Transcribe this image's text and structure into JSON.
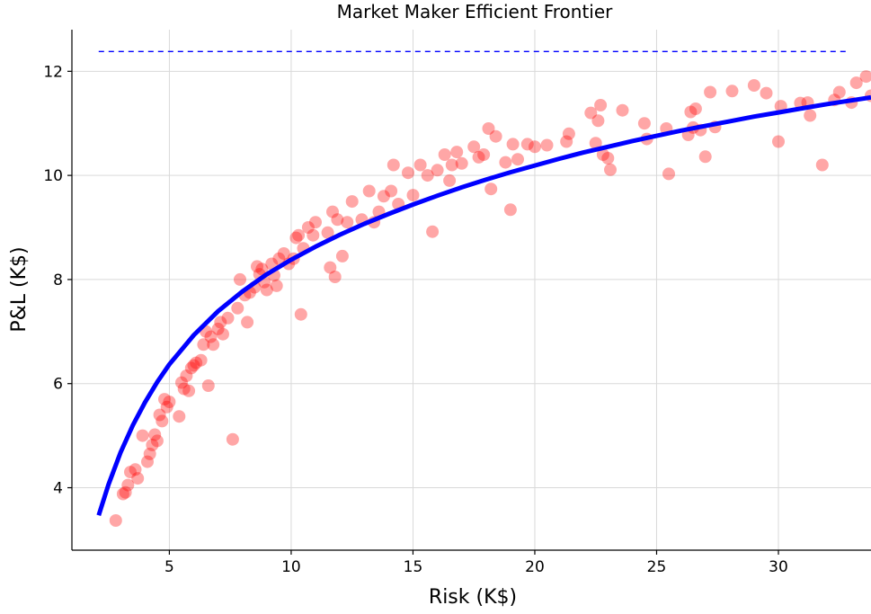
{
  "chart_data": {
    "type": "scatter",
    "title": "Market Maker Efficient Frontier",
    "xlabel": "Risk (K$)",
    "ylabel": "P&L (K$)",
    "xlim": [
      1.0,
      33.8
    ],
    "ylim": [
      2.8,
      12.8
    ],
    "xticks": [
      5,
      10,
      15,
      20,
      25,
      30
    ],
    "yticks": [
      4,
      6,
      8,
      10,
      12
    ],
    "grid": true,
    "legend": "none",
    "colors": {
      "scatter": "#ff0000",
      "frontier": "#0000ff",
      "reference": "#0000ff",
      "grid": "#d9d9d9"
    },
    "series": [
      {
        "type": "line",
        "style": "solid",
        "x": [
          2.1,
          2.5,
          3.0,
          3.5,
          4.0,
          4.5,
          5.0,
          6.0,
          7.0,
          8.0,
          9.0,
          10.0,
          11.0,
          12.0,
          13.0,
          14.0,
          15.0,
          16.0,
          17.0,
          18.0,
          19.0,
          20.0,
          21.0,
          22.0,
          23.0,
          24.0,
          25.0,
          26.0,
          27.0,
          28.0,
          29.0,
          30.0,
          31.0,
          32.0,
          33.0,
          33.8
        ],
        "y": [
          3.47,
          4.06,
          4.68,
          5.2,
          5.64,
          6.03,
          6.37,
          6.93,
          7.39,
          7.77,
          8.1,
          8.38,
          8.63,
          8.86,
          9.07,
          9.26,
          9.44,
          9.61,
          9.77,
          9.92,
          10.06,
          10.19,
          10.32,
          10.44,
          10.55,
          10.66,
          10.76,
          10.86,
          10.95,
          11.04,
          11.13,
          11.21,
          11.29,
          11.37,
          11.44,
          11.5
        ]
      },
      {
        "type": "line",
        "style": "dashed",
        "x": [
          2.1,
          32.8
        ],
        "y": [
          12.38,
          12.38
        ]
      },
      {
        "type": "scatter",
        "points": [
          [
            2.8,
            3.37
          ],
          [
            3.1,
            3.88
          ],
          [
            3.2,
            3.91
          ],
          [
            3.3,
            4.05
          ],
          [
            3.4,
            4.3
          ],
          [
            3.6,
            4.35
          ],
          [
            3.7,
            4.18
          ],
          [
            3.9,
            5.0
          ],
          [
            4.1,
            4.5
          ],
          [
            4.2,
            4.65
          ],
          [
            4.3,
            4.82
          ],
          [
            4.4,
            5.02
          ],
          [
            4.5,
            4.9
          ],
          [
            4.6,
            5.4
          ],
          [
            4.7,
            5.28
          ],
          [
            4.8,
            5.7
          ],
          [
            4.9,
            5.55
          ],
          [
            5.0,
            5.65
          ],
          [
            5.4,
            5.37
          ],
          [
            5.5,
            6.02
          ],
          [
            5.6,
            5.9
          ],
          [
            5.7,
            6.15
          ],
          [
            5.8,
            5.86
          ],
          [
            5.9,
            6.3
          ],
          [
            6.0,
            6.35
          ],
          [
            6.1,
            6.4
          ],
          [
            6.3,
            6.45
          ],
          [
            6.4,
            6.75
          ],
          [
            6.5,
            7.0
          ],
          [
            6.6,
            5.96
          ],
          [
            6.7,
            6.9
          ],
          [
            6.8,
            6.75
          ],
          [
            7.0,
            7.05
          ],
          [
            7.1,
            7.18
          ],
          [
            7.2,
            6.95
          ],
          [
            7.4,
            7.26
          ],
          [
            7.6,
            4.93
          ],
          [
            7.8,
            7.45
          ],
          [
            7.9,
            8.0
          ],
          [
            8.1,
            7.7
          ],
          [
            8.2,
            7.18
          ],
          [
            8.3,
            7.75
          ],
          [
            8.5,
            7.85
          ],
          [
            8.6,
            8.25
          ],
          [
            8.7,
            8.1
          ],
          [
            8.8,
            8.2
          ],
          [
            8.9,
            7.95
          ],
          [
            9.0,
            7.8
          ],
          [
            9.2,
            8.3
          ],
          [
            9.3,
            8.08
          ],
          [
            9.4,
            7.88
          ],
          [
            9.5,
            8.4
          ],
          [
            9.7,
            8.5
          ],
          [
            9.9,
            8.3
          ],
          [
            10.1,
            8.4
          ],
          [
            10.2,
            8.8
          ],
          [
            10.3,
            8.85
          ],
          [
            10.4,
            7.33
          ],
          [
            10.5,
            8.6
          ],
          [
            10.7,
            9.0
          ],
          [
            10.9,
            8.85
          ],
          [
            11.0,
            9.1
          ],
          [
            11.5,
            8.9
          ],
          [
            11.6,
            8.23
          ],
          [
            11.7,
            9.3
          ],
          [
            11.8,
            8.05
          ],
          [
            11.9,
            9.15
          ],
          [
            12.1,
            8.45
          ],
          [
            12.3,
            9.1
          ],
          [
            12.5,
            9.5
          ],
          [
            12.9,
            9.15
          ],
          [
            13.2,
            9.7
          ],
          [
            13.4,
            9.1
          ],
          [
            13.6,
            9.3
          ],
          [
            13.8,
            9.6
          ],
          [
            14.1,
            9.7
          ],
          [
            14.2,
            10.2
          ],
          [
            14.4,
            9.45
          ],
          [
            14.8,
            10.05
          ],
          [
            15.0,
            9.62
          ],
          [
            15.3,
            10.2
          ],
          [
            15.6,
            10.0
          ],
          [
            15.8,
            8.92
          ],
          [
            16.0,
            10.1
          ],
          [
            16.3,
            10.4
          ],
          [
            16.5,
            9.9
          ],
          [
            16.6,
            10.2
          ],
          [
            16.8,
            10.45
          ],
          [
            17.0,
            10.23
          ],
          [
            17.5,
            10.55
          ],
          [
            17.7,
            10.35
          ],
          [
            17.9,
            10.4
          ],
          [
            18.1,
            10.9
          ],
          [
            18.2,
            9.74
          ],
          [
            18.4,
            10.75
          ],
          [
            18.8,
            10.25
          ],
          [
            19.0,
            9.34
          ],
          [
            19.1,
            10.6
          ],
          [
            19.3,
            10.31
          ],
          [
            19.7,
            10.6
          ],
          [
            20.0,
            10.55
          ],
          [
            20.5,
            10.58
          ],
          [
            21.3,
            10.65
          ],
          [
            21.4,
            10.8
          ],
          [
            22.3,
            11.2
          ],
          [
            22.5,
            10.62
          ],
          [
            22.6,
            11.05
          ],
          [
            22.7,
            11.35
          ],
          [
            22.8,
            10.4
          ],
          [
            23.0,
            10.33
          ],
          [
            23.1,
            10.11
          ],
          [
            23.6,
            11.25
          ],
          [
            24.5,
            11.0
          ],
          [
            24.6,
            10.7
          ],
          [
            25.4,
            10.9
          ],
          [
            25.5,
            10.03
          ],
          [
            26.3,
            10.78
          ],
          [
            26.4,
            11.22
          ],
          [
            26.5,
            10.92
          ],
          [
            26.6,
            11.28
          ],
          [
            26.8,
            10.87
          ],
          [
            27.0,
            10.36
          ],
          [
            27.2,
            11.6
          ],
          [
            27.4,
            10.93
          ],
          [
            28.1,
            11.62
          ],
          [
            29.0,
            11.73
          ],
          [
            29.5,
            11.58
          ],
          [
            30.0,
            10.65
          ],
          [
            30.1,
            11.33
          ],
          [
            30.9,
            11.39
          ],
          [
            31.2,
            11.4
          ],
          [
            31.3,
            11.15
          ],
          [
            31.8,
            10.2
          ],
          [
            32.3,
            11.45
          ],
          [
            32.5,
            11.6
          ],
          [
            33.0,
            11.4
          ],
          [
            33.2,
            11.78
          ],
          [
            33.6,
            11.9
          ],
          [
            33.8,
            11.53
          ]
        ]
      }
    ]
  }
}
